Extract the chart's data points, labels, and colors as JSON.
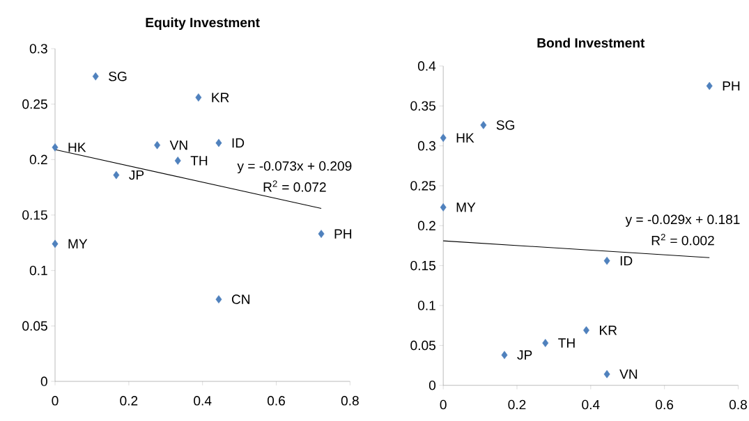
{
  "chart_data": [
    {
      "type": "scatter",
      "title": "Equity Investment",
      "xlim": [
        0,
        0.8
      ],
      "ylim": [
        0,
        0.3
      ],
      "xticks": [
        0,
        0.2,
        0.4,
        0.6,
        0.8
      ],
      "yticks": [
        0,
        0.05,
        0.1,
        0.15,
        0.2,
        0.25,
        0.3
      ],
      "grid": false,
      "series": [
        {
          "marker": "diamond",
          "color": "#4f81bd",
          "x": [
            0.11,
            0.389,
            0.277,
            0.333,
            0.444,
            0,
            0.166,
            0.722,
            0,
            0.444
          ],
          "values": [
            0.275,
            0.256,
            0.213,
            0.199,
            0.215,
            0.211,
            0.186,
            0.133,
            0.124,
            0.074
          ]
        },
        {
          "type": "line",
          "color": "#000000",
          "x": [
            0,
            0.722
          ],
          "values": [
            0.209,
            0.156
          ]
        }
      ],
      "annotations": [
        {
          "text": "SG",
          "x": 0.11,
          "y": 0.275
        },
        {
          "text": "KR",
          "x": 0.389,
          "y": 0.256
        },
        {
          "text": "VN",
          "x": 0.277,
          "y": 0.213
        },
        {
          "text": "TH",
          "x": 0.333,
          "y": 0.199
        },
        {
          "text": "ID",
          "x": 0.444,
          "y": 0.215
        },
        {
          "text": "HK",
          "x": 0,
          "y": 0.211
        },
        {
          "text": "JP",
          "x": 0.166,
          "y": 0.186
        },
        {
          "text": "PH",
          "x": 0.722,
          "y": 0.133
        },
        {
          "text": "MY",
          "x": 0,
          "y": 0.124
        },
        {
          "text": "CN",
          "x": 0.444,
          "y": 0.074
        },
        "y = -0.073x + 0.209",
        "R$^{2}$ = 0.072"
      ]
    },
    {
      "type": "scatter",
      "title": "Bond Investment",
      "xlim": [
        0,
        0.8
      ],
      "ylim": [
        0,
        0.4
      ],
      "xticks": [
        0,
        0.2,
        0.4,
        0.6,
        0.8
      ],
      "yticks": [
        0,
        0.05,
        0.1,
        0.15,
        0.2,
        0.25,
        0.3,
        0.35,
        0.4
      ],
      "grid": false,
      "series": [
        {
          "marker": "diamond",
          "color": "#4f81bd",
          "x": [
            0.722,
            0.109,
            0,
            0,
            0.444,
            0.388,
            0.277,
            0.166,
            0.444
          ],
          "values": [
            0.375,
            0.326,
            0.31,
            0.223,
            0.156,
            0.069,
            0.053,
            0.038,
            0.014
          ]
        },
        {
          "type": "line",
          "color": "#000000",
          "x": [
            0,
            0.722
          ],
          "values": [
            0.181,
            0.16
          ]
        }
      ],
      "annotations": [
        {
          "text": "PH",
          "x": 0.722,
          "y": 0.375
        },
        {
          "text": "SG",
          "x": 0.109,
          "y": 0.326
        },
        {
          "text": "HK",
          "x": 0,
          "y": 0.31
        },
        {
          "text": "MY",
          "x": 0,
          "y": 0.223
        },
        {
          "text": "ID",
          "x": 0.444,
          "y": 0.156
        },
        {
          "text": "KR",
          "x": 0.388,
          "y": 0.069
        },
        {
          "text": "TH",
          "x": 0.277,
          "y": 0.053
        },
        {
          "text": "JP",
          "x": 0.166,
          "y": 0.038
        },
        {
          "text": "VN",
          "x": 0.444,
          "y": 0.014
        },
        "y = -0.029x + 0.181",
        "R$^{2}$ = 0.002"
      ]
    }
  ]
}
